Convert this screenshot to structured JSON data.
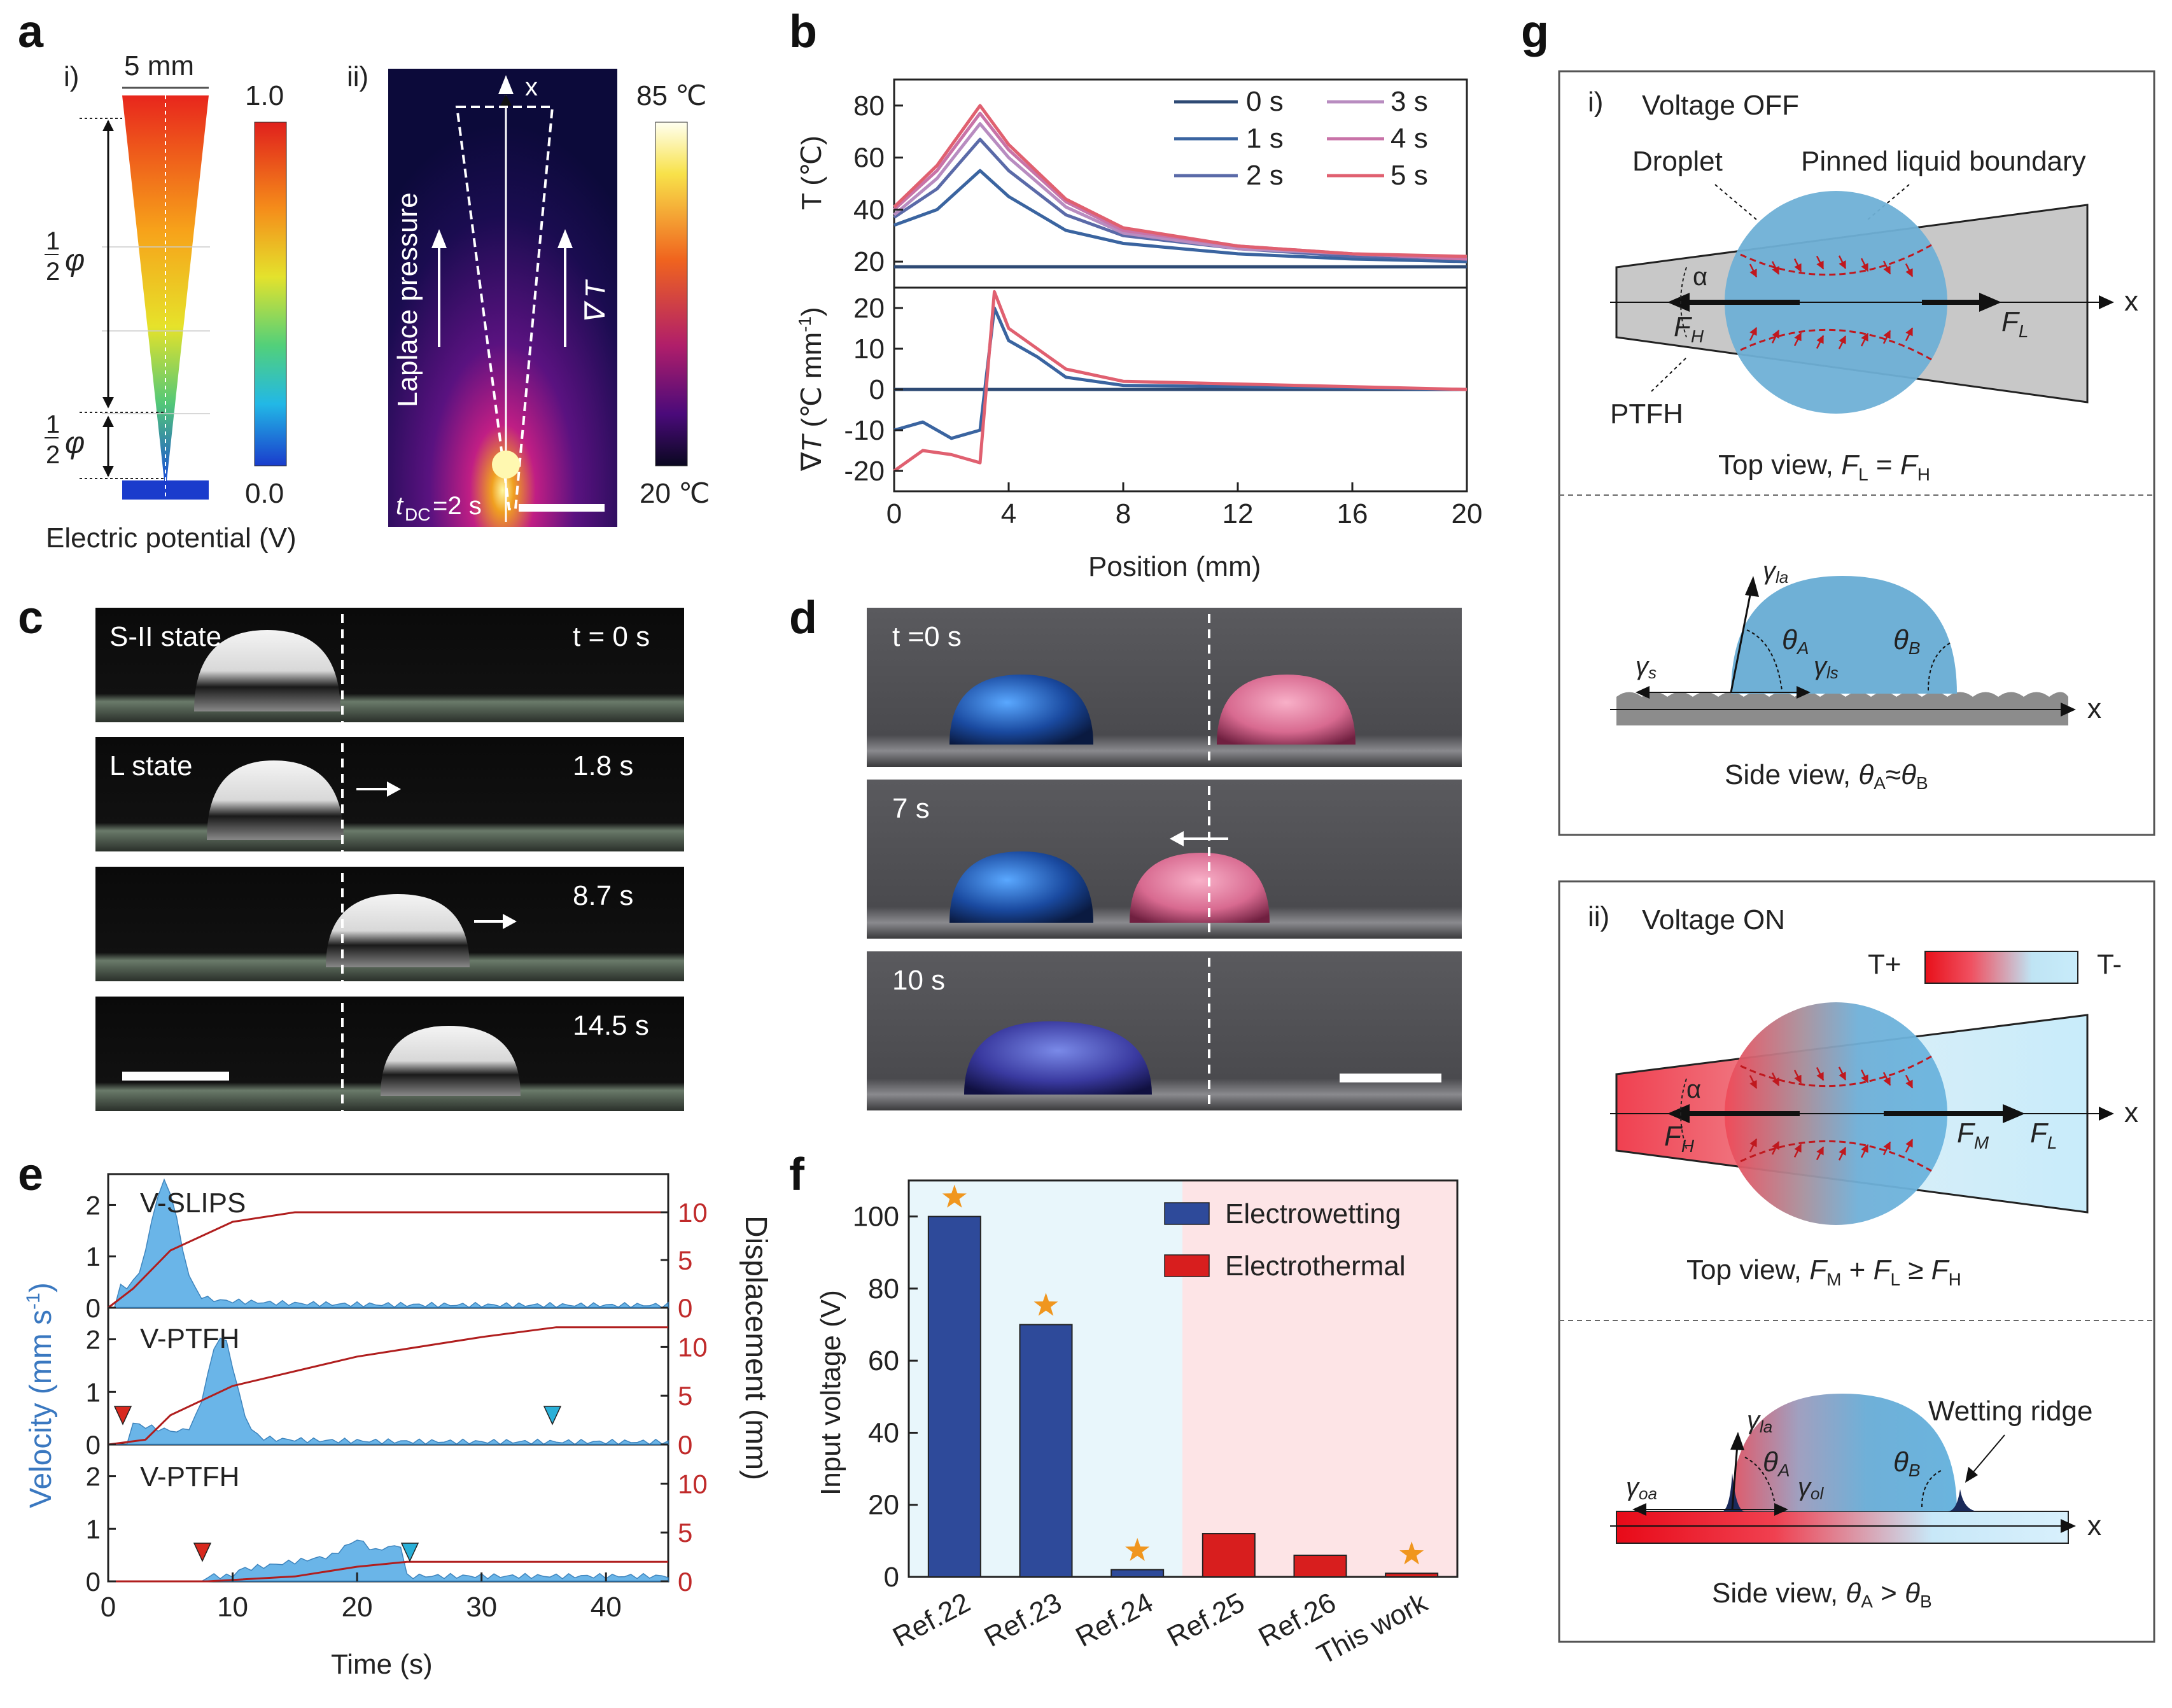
{
  "panel_labels": {
    "a": "a",
    "b": "b",
    "c": "c",
    "d": "d",
    "e": "e",
    "f": "f",
    "g": "g"
  },
  "panel_a": {
    "sub_i": "i)",
    "sub_ii": "ii)",
    "scale_text": "5 mm",
    "phi_half": "1",
    "phi_den": "2",
    "phi_sym": "φ",
    "colorbar_max": "1.0",
    "colorbar_min": "0.0",
    "xlabel": "Electric potential (V)",
    "laplace_label": "Laplace pressure",
    "grad_label": "∇ T",
    "x_label": "x",
    "thermal_max": "85 ℃",
    "thermal_min": "20 ℃",
    "tdc_label": "t",
    "tdc_sub": "DC",
    "tdc_val": "=2 s"
  },
  "panel_b": {
    "top_ylabel": "T (℃)",
    "bottom_ylabel_a": "∇",
    "bottom_ylabel_b": "T",
    "bottom_ylabel_c": " (℃ mm",
    "bottom_ylabel_d": "-1",
    "bottom_ylabel_e": ")",
    "xlabel": "Position (mm)",
    "x_ticks": [
      "0",
      "4",
      "8",
      "12",
      "16",
      "20"
    ],
    "top_y_ticks": [
      "20",
      "40",
      "60",
      "80"
    ],
    "bottom_y_ticks": [
      "20",
      "10",
      "0",
      "-10",
      "-20"
    ],
    "legend": [
      "0 s",
      "1 s",
      "2 s",
      "3 s",
      "4 s",
      "5 s"
    ],
    "colors": [
      "#2e4a74",
      "#3a64a0",
      "#5a6aa8",
      "#b88cc0",
      "#c873a8",
      "#e06070"
    ]
  },
  "panel_c": {
    "frames": [
      {
        "left": "S-II state",
        "right": "t = 0 s"
      },
      {
        "left": "L state",
        "right": "1.8 s"
      },
      {
        "left": "",
        "right": "8.7 s"
      },
      {
        "left": "",
        "right": "14.5 s"
      }
    ]
  },
  "panel_d": {
    "frames": [
      {
        "label": "t =0 s"
      },
      {
        "label": "7 s"
      },
      {
        "label": "10 s"
      }
    ]
  },
  "panel_e": {
    "subplots": [
      "V-SLIPS",
      "V-PTFH",
      "V-PTFH"
    ],
    "ylabel_left_a": "Velocity (mm s",
    "ylabel_left_b": "-1",
    "ylabel_left_c": ")",
    "ylabel_right": "Displacement (mm)",
    "xlabel": "Time (s)",
    "x_ticks": [
      "0",
      "10",
      "20",
      "30",
      "40"
    ],
    "left_ticks": [
      "0",
      "1",
      "2"
    ],
    "right_ticks": [
      "0",
      "5",
      "10"
    ]
  },
  "panel_f": {
    "ylabel": "Input voltage (V)",
    "y_ticks": [
      "0",
      "20",
      "40",
      "60",
      "80",
      "100"
    ],
    "legend": [
      "Electrowetting",
      "Electrothermal"
    ]
  },
  "panel_g": {
    "i_title": "i)",
    "i_state": "Voltage OFF",
    "droplet": "Droplet",
    "pinned": "Pinned liquid boundary",
    "ptfh": "PTFH",
    "alpha": "α",
    "fh": "F",
    "fh_sub": "H",
    "fl": "F",
    "fl_sub": "L",
    "fm": "F",
    "fm_sub": "M",
    "x": "x",
    "top_view_i": "Top view, ",
    "top_view_i_eq": "F",
    "side_view_i": "Side view, ",
    "theta_a": "θ",
    "theta_a_sub": "A",
    "theta_b": "θ",
    "theta_b_sub": "B",
    "gamma_la": "la",
    "gamma_s": "s",
    "gamma_ls": "ls",
    "gamma_oa": "oa",
    "gamma_ol": "ol",
    "gamma": "γ",
    "ii_title": "ii)",
    "ii_state": "Voltage ON",
    "t_plus": "T+",
    "t_minus": "T-",
    "top_view_ii": "Top view, ",
    "side_view_ii": "Side view, ",
    "wetting_ridge": "Wetting ridge",
    "eq_sign": " = ",
    "approx_sign": "≈",
    "ge_sign": " ≥ ",
    "plus_sign": " + ",
    "gt_sign": "  >  "
  },
  "chart_data": [
    {
      "type": "line",
      "title": "",
      "xlabel": "Position (mm)",
      "ylabel": "T (℃)",
      "xlim": [
        0,
        20
      ],
      "ylim": [
        10,
        90
      ],
      "series": [
        {
          "name": "0 s",
          "x": [
            0,
            4,
            8,
            12,
            16,
            20
          ],
          "values": [
            18,
            18,
            18,
            18,
            18,
            18
          ]
        },
        {
          "name": "1 s",
          "x": [
            0,
            1.5,
            3,
            4,
            6,
            8,
            12,
            16,
            20
          ],
          "values": [
            34,
            40,
            55,
            45,
            32,
            27,
            23,
            21,
            20
          ]
        },
        {
          "name": "2 s",
          "x": [
            0,
            1.5,
            3,
            4,
            6,
            8,
            12,
            16,
            20
          ],
          "values": [
            37,
            48,
            67,
            55,
            38,
            30,
            25,
            22,
            21
          ]
        },
        {
          "name": "3 s",
          "x": [
            0,
            1.5,
            3,
            4,
            6,
            8,
            12,
            16,
            20
          ],
          "values": [
            38,
            52,
            73,
            60,
            41,
            31,
            25,
            23,
            21
          ]
        },
        {
          "name": "4 s",
          "x": [
            0,
            1.5,
            3,
            4,
            6,
            8,
            12,
            16,
            20
          ],
          "values": [
            40,
            55,
            77,
            63,
            43,
            32,
            26,
            23,
            21
          ]
        },
        {
          "name": "5 s",
          "x": [
            0,
            1.5,
            3,
            4,
            6,
            8,
            12,
            16,
            20
          ],
          "values": [
            41,
            57,
            80,
            65,
            44,
            33,
            26,
            23,
            22
          ]
        }
      ]
    },
    {
      "type": "line",
      "xlabel": "Position (mm)",
      "ylabel": "∇T (℃ mm-1)",
      "xlim": [
        0,
        20
      ],
      "ylim": [
        -25,
        25
      ],
      "series": [
        {
          "name": "0 s",
          "x": [
            0,
            20
          ],
          "values": [
            0,
            0
          ]
        },
        {
          "name": "1 s",
          "x": [
            0,
            1,
            2,
            3,
            3.5,
            4,
            5,
            6,
            8,
            20
          ],
          "values": [
            -10,
            -8,
            -12,
            -10,
            20,
            12,
            8,
            3,
            1,
            0
          ]
        },
        {
          "name": "5 s",
          "x": [
            0,
            1,
            2,
            3,
            3.5,
            4,
            5,
            6,
            8,
            20
          ],
          "values": [
            -20,
            -15,
            -16,
            -18,
            24,
            15,
            10,
            5,
            2,
            0
          ]
        }
      ]
    },
    {
      "type": "bar",
      "categories": [
        "Ref.22",
        "Ref.23",
        "Ref.24",
        "Ref.25",
        "Ref.26",
        "This work"
      ],
      "values": [
        100,
        70,
        2,
        12,
        6,
        1
      ],
      "groups": [
        "Electrowetting",
        "Electrowetting",
        "Electrowetting",
        "Electrothermal",
        "Electrothermal",
        "Electrothermal"
      ],
      "starred": [
        true,
        true,
        true,
        false,
        false,
        true
      ],
      "ylabel": "Input voltage (V)",
      "ylim": [
        0,
        110
      ]
    },
    {
      "type": "area",
      "xlabel": "Time (s)",
      "ylabel": "Velocity (mm s-1)",
      "ylabel_right": "Displacement (mm)",
      "xlim": [
        0,
        45
      ],
      "series": [
        {
          "name": "V-SLIPS displacement",
          "x": [
            0,
            2,
            5,
            10,
            15,
            20,
            45
          ],
          "values": [
            0,
            2,
            6,
            9,
            10,
            10,
            10
          ]
        },
        {
          "name": "V-PTFH displacement",
          "x": [
            0,
            3,
            5,
            10,
            20,
            30,
            36,
            45
          ],
          "values": [
            0,
            0.5,
            3,
            6,
            9,
            11,
            12,
            12
          ]
        },
        {
          "name": "V-PTFH displacement 2",
          "x": [
            0,
            8,
            15,
            20,
            24,
            45
          ],
          "values": [
            0,
            0,
            0.5,
            1.5,
            2,
            2
          ]
        }
      ]
    }
  ]
}
